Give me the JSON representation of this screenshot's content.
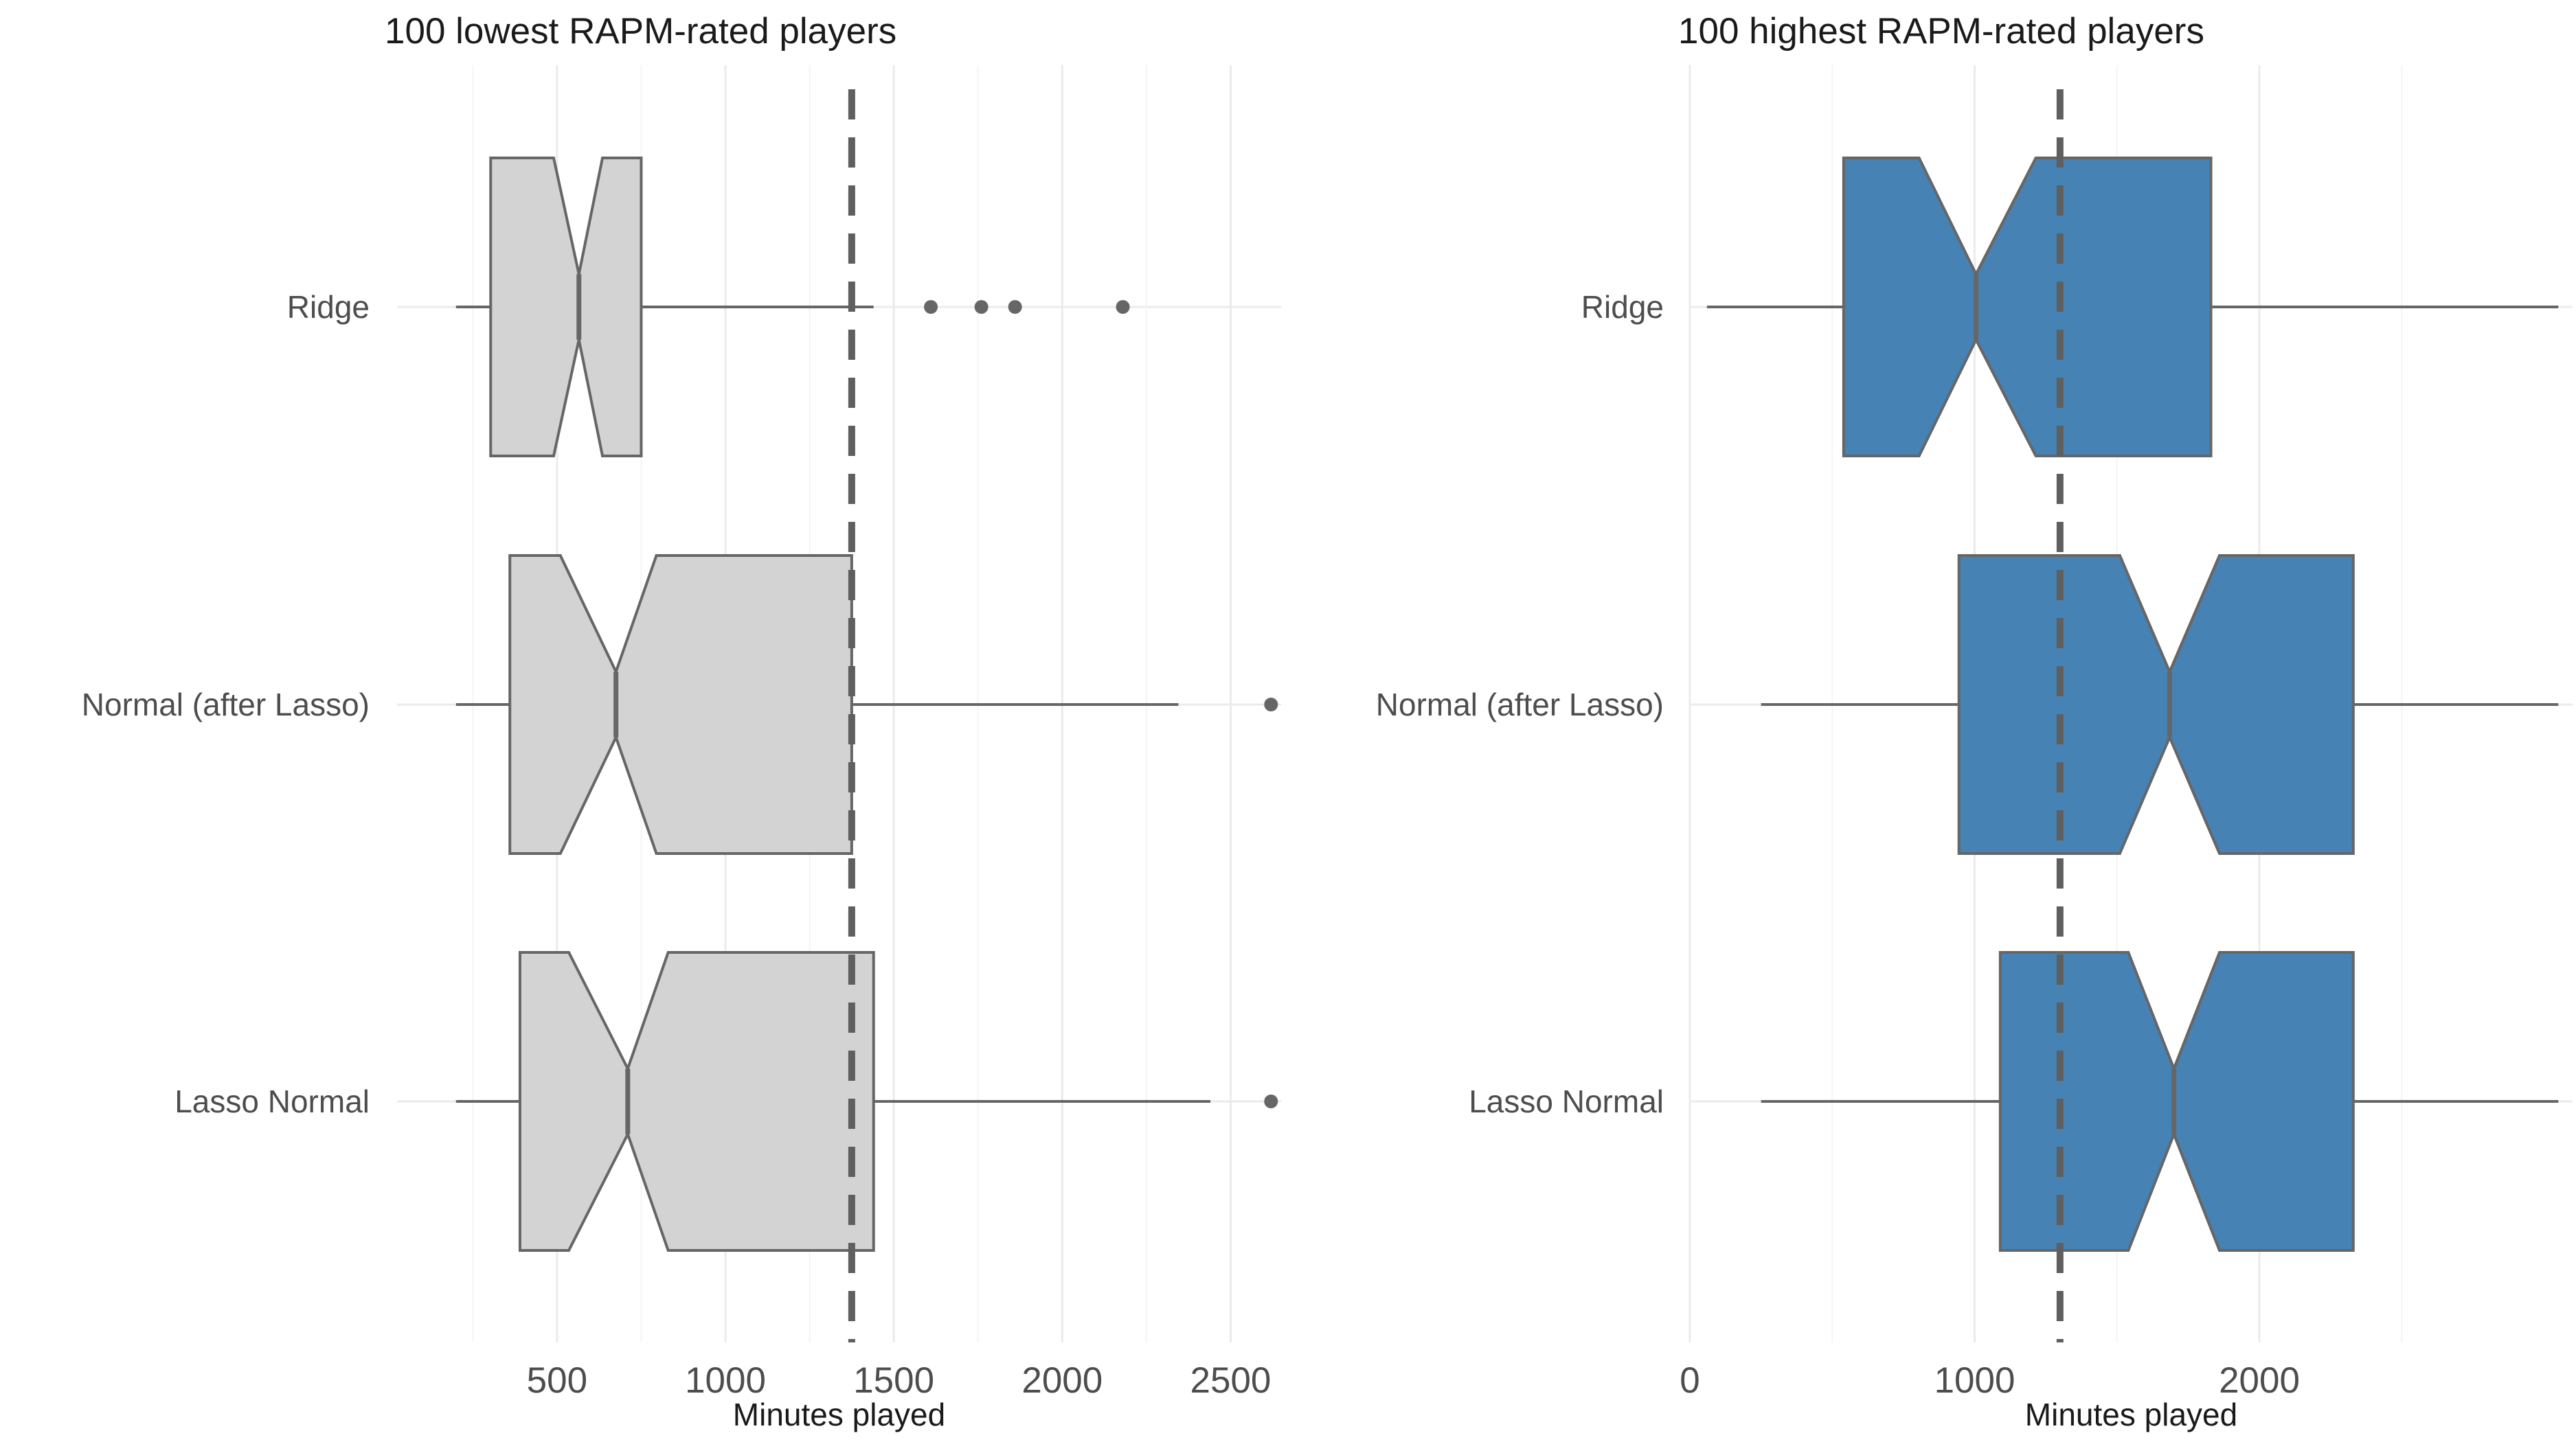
{
  "chart_data": [
    {
      "type": "boxplot",
      "title": "100 lowest RAPM-rated players",
      "xlabel": "Minutes played",
      "ylabel": "",
      "xlim": [
        25,
        2650
      ],
      "xticks": [
        500,
        1000,
        1500,
        2000,
        2500
      ],
      "xtick_labels": [
        "500",
        "1000",
        "1500",
        "2000",
        "2500"
      ],
      "reference_line": 1375,
      "fill_color": "#d3d3d3",
      "grid": true,
      "categories": [
        "Ridge",
        "Normal (after Lasso)",
        "Lasso Normal"
      ],
      "boxes": [
        {
          "name": "Ridge",
          "whisker_low": 200,
          "q1": 303,
          "notch_low": 490,
          "median": 565,
          "notch_high": 635,
          "q3": 750,
          "whisker_high": 1440,
          "outliers": [
            1610,
            1760,
            1860,
            2180
          ]
        },
        {
          "name": "Normal (after Lasso)",
          "whisker_low": 200,
          "q1": 360,
          "notch_low": 510,
          "median": 675,
          "notch_high": 795,
          "q3": 1375,
          "whisker_high": 2345,
          "outliers": [
            2620
          ]
        },
        {
          "name": "Lasso Normal",
          "whisker_low": 200,
          "q1": 390,
          "notch_low": 535,
          "median": 710,
          "notch_high": 830,
          "q3": 1440,
          "whisker_high": 2440,
          "outliers": [
            2620
          ]
        }
      ]
    },
    {
      "type": "boxplot",
      "title": "100 highest RAPM-rated players",
      "xlabel": "Minutes played",
      "ylabel": "",
      "xlim": [
        0,
        3100
      ],
      "xticks": [
        0,
        1000,
        2000
      ],
      "xtick_labels": [
        "0",
        "1000",
        "2000"
      ],
      "minor_xticks": [
        500,
        1500,
        2500
      ],
      "reference_line": 1300,
      "fill_color": "#4682b4",
      "grid": true,
      "categories": [
        "Ridge",
        "Normal (after Lasso)",
        "Lasso Normal"
      ],
      "boxes": [
        {
          "name": "Ridge",
          "whisker_low": 60,
          "q1": 540,
          "notch_low": 805,
          "median": 1005,
          "notch_high": 1215,
          "q3": 1830,
          "whisker_high": 3050
        },
        {
          "name": "Normal (after Lasso)",
          "whisker_low": 250,
          "q1": 945,
          "notch_low": 1510,
          "median": 1685,
          "notch_high": 1860,
          "q3": 2330,
          "whisker_high": 3050
        },
        {
          "name": "Lasso Normal",
          "whisker_low": 250,
          "q1": 1090,
          "notch_low": 1540,
          "median": 1700,
          "notch_high": 1860,
          "q3": 2330,
          "whisker_high": 3050
        }
      ]
    }
  ]
}
